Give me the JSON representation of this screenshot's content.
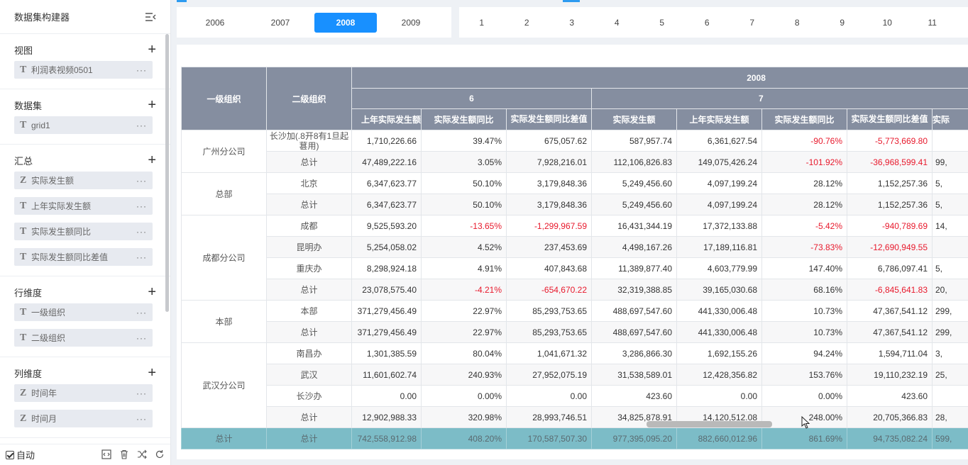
{
  "sidebar": {
    "title": "数据集构建器",
    "sections": [
      {
        "title": "视图",
        "fields": [
          {
            "type": "T",
            "name": "利润表视频0501"
          }
        ]
      },
      {
        "title": "数据集",
        "fields": [
          {
            "type": "T",
            "name": "grid1"
          }
        ]
      },
      {
        "title": "汇总",
        "fields": [
          {
            "type": "Z",
            "name": "实际发生额"
          },
          {
            "type": "T",
            "name": "上年实际发生额"
          },
          {
            "type": "T",
            "name": "实际发生额同比"
          },
          {
            "type": "T",
            "name": "实际发生额同比差值"
          }
        ]
      },
      {
        "title": "行维度",
        "fields": [
          {
            "type": "T",
            "name": "一级组织"
          },
          {
            "type": "T",
            "name": "二级组织"
          }
        ]
      },
      {
        "title": "列维度",
        "fields": [
          {
            "type": "Z",
            "name": "时间年"
          },
          {
            "type": "Z",
            "name": "时间月"
          }
        ]
      }
    ],
    "more_label": "···",
    "footer": {
      "auto_label": "自动"
    }
  },
  "years": [
    {
      "label": "2006"
    },
    {
      "label": "2007"
    },
    {
      "label": "2008",
      "active": true
    },
    {
      "label": "2009"
    }
  ],
  "months": [
    "1",
    "2",
    "3",
    "4",
    "5",
    "6",
    "7",
    "8",
    "9",
    "10",
    "11"
  ],
  "table": {
    "row_headers": [
      "一级组织",
      "二级组织"
    ],
    "year": "2008",
    "month_groups": [
      "6",
      "7"
    ],
    "columns": [
      "上年实际发生额",
      "实际发生额同比",
      "实际发生额同比差值",
      "实际发生额",
      "上年实际发生额",
      "实际发生额同比",
      "实际发生额同比差值",
      "实际"
    ],
    "rows": [
      {
        "org": "广州分公司",
        "span": 2,
        "sub": "长沙加(.8开8有1旦起葚用)",
        "cells": [
          "1,710,226.66",
          "39.47%",
          "675,057.62",
          "587,957.74",
          "6,361,627.54",
          "-90.76%",
          "-5,773,669.80",
          ""
        ]
      },
      {
        "sub": "总计",
        "alt": true,
        "cells": [
          "47,489,222.16",
          "3.05%",
          "7,928,216.01",
          "112,106,826.83",
          "149,075,426.24",
          "-101.92%",
          "-36,968,599.41",
          "99,"
        ]
      },
      {
        "org": "总部",
        "span": 2,
        "sub": "北京",
        "cells": [
          "6,347,623.77",
          "50.10%",
          "3,179,848.36",
          "5,249,456.60",
          "4,097,199.24",
          "28.12%",
          "1,152,257.36",
          "5,"
        ]
      },
      {
        "sub": "总计",
        "alt": true,
        "cells": [
          "6,347,623.77",
          "50.10%",
          "3,179,848.36",
          "5,249,456.60",
          "4,097,199.24",
          "28.12%",
          "1,152,257.36",
          "5,"
        ]
      },
      {
        "org": "成都分公司",
        "span": 4,
        "sub": "成都",
        "cells": [
          "9,525,593.20",
          "-13.65%",
          "-1,299,967.59",
          "16,431,344.19",
          "17,372,133.88",
          "-5.42%",
          "-940,789.69",
          "14,"
        ]
      },
      {
        "sub": "昆明办",
        "alt": true,
        "cells": [
          "5,254,058.02",
          "4.52%",
          "237,453.69",
          "4,498,167.26",
          "17,189,116.81",
          "-73.83%",
          "-12,690,949.55",
          ""
        ]
      },
      {
        "sub": "重庆办",
        "cells": [
          "8,298,924.18",
          "4.91%",
          "407,843.68",
          "11,389,877.40",
          "4,603,779.99",
          "147.40%",
          "6,786,097.41",
          "5,"
        ]
      },
      {
        "sub": "总计",
        "alt": true,
        "cells": [
          "23,078,575.40",
          "-4.21%",
          "-654,670.22",
          "32,319,388.85",
          "39,165,030.68",
          "68.16%",
          "-6,845,641.83",
          "20,"
        ]
      },
      {
        "org": "本部",
        "span": 2,
        "sub": "本部",
        "cells": [
          "371,279,456.49",
          "22.97%",
          "85,293,753.65",
          "488,697,547.60",
          "441,330,006.48",
          "10.73%",
          "47,367,541.12",
          "299,"
        ]
      },
      {
        "sub": "总计",
        "alt": true,
        "cells": [
          "371,279,456.49",
          "22.97%",
          "85,293,753.65",
          "488,697,547.60",
          "441,330,006.48",
          "10.73%",
          "47,367,541.12",
          "299,"
        ]
      },
      {
        "org": "武汉分公司",
        "span": 4,
        "sub": "南昌办",
        "cells": [
          "1,301,385.59",
          "80.04%",
          "1,041,671.32",
          "3,286,866.30",
          "1,692,155.26",
          "94.24%",
          "1,594,711.04",
          "3,"
        ]
      },
      {
        "sub": "武汉",
        "alt": true,
        "cells": [
          "11,601,602.74",
          "240.93%",
          "27,952,075.19",
          "31,538,589.01",
          "12,428,356.82",
          "153.76%",
          "19,110,232.19",
          "25,"
        ]
      },
      {
        "sub": "长沙办",
        "cells": [
          "0.00",
          "0.00%",
          "0.00",
          "423.60",
          "0.00",
          "0.00%",
          "423.60",
          ""
        ]
      },
      {
        "sub": "总计",
        "alt": true,
        "cells": [
          "12,902,988.33",
          "320.98%",
          "28,993,746.51",
          "34,825,878.91",
          "14,120,512.08",
          "248.00%",
          "20,705,366.83",
          "28,"
        ]
      }
    ],
    "total_row": {
      "org": "总计",
      "sub": "总计",
      "cells": [
        "742,558,912.98",
        "408.20%",
        "170,587,507.30",
        "977,395,095.20",
        "882,660,012.96",
        "861.69%",
        "94,735,082.24",
        "599,"
      ]
    }
  },
  "colors": {
    "accent": "#1890ff",
    "header_bg": "#858ea0",
    "total_bg": "#7cbcc7",
    "negative": "#e8192c"
  }
}
